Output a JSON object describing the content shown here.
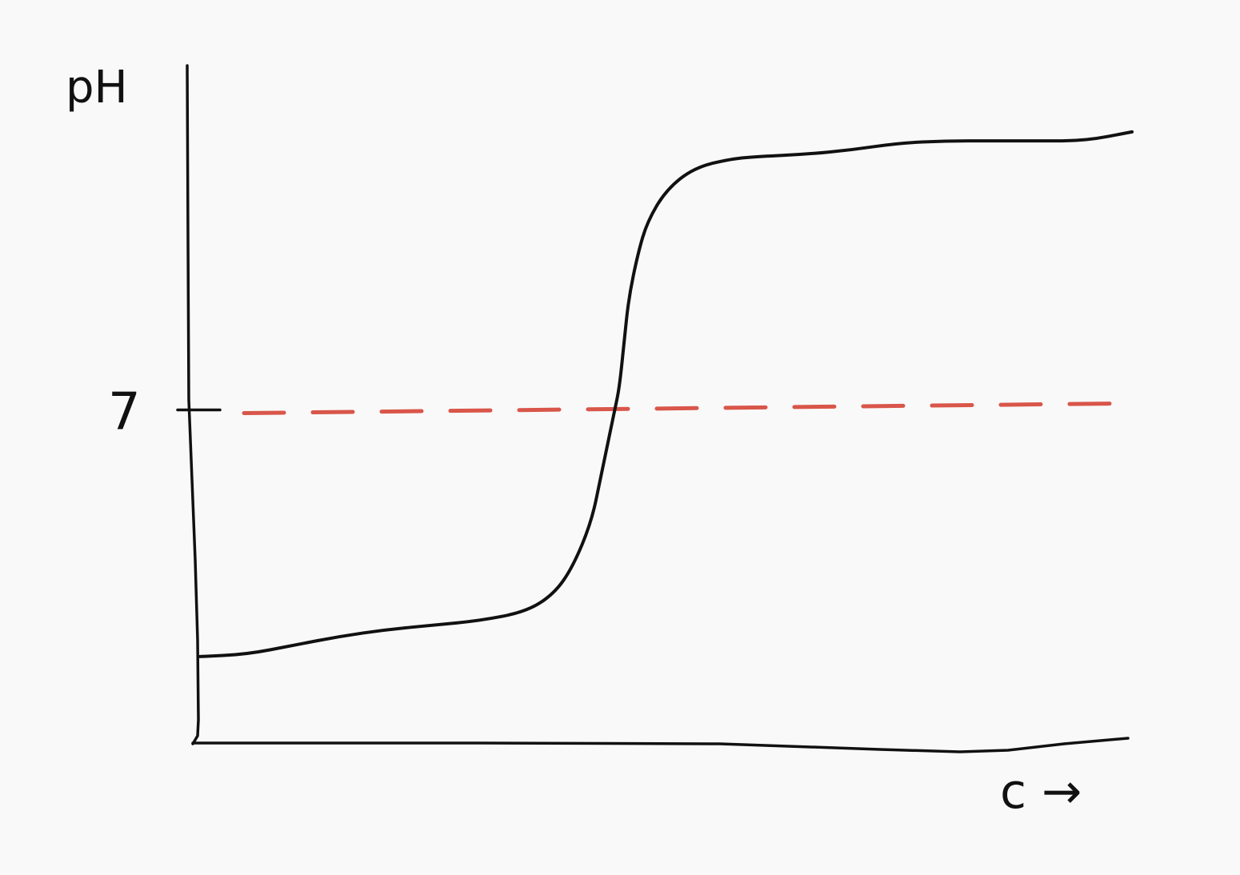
{
  "chart_data": {
    "type": "line",
    "title": "",
    "ylabel": "pH",
    "xlabel": "c →",
    "y_ticks": [
      {
        "label": "7",
        "value": 7
      }
    ],
    "reference_line": {
      "value": 7,
      "style": "dashed",
      "color": "#d9564a"
    },
    "ylim": [
      0,
      14
    ],
    "xlim": [
      0,
      1
    ],
    "series": [
      {
        "color": "#111111",
        "x": [
          0,
          0.05,
          0.1,
          0.15,
          0.2,
          0.25,
          0.3,
          0.35,
          0.38,
          0.4,
          0.42,
          0.43,
          0.44,
          0.445,
          0.45,
          0.455,
          0.46,
          0.47,
          0.48,
          0.5,
          0.53,
          0.57,
          0.6,
          0.65,
          0.7,
          0.75,
          0.8,
          0.85,
          0.9,
          0.95,
          1.0
        ],
        "y": [
          1.5,
          1.55,
          1.75,
          1.95,
          2.1,
          2.2,
          2.3,
          2.5,
          2.9,
          3.5,
          4.5,
          5.5,
          6.5,
          7.0,
          7.5,
          8.5,
          9.5,
          10.5,
          11.2,
          11.9,
          12.4,
          12.6,
          12.65,
          12.7,
          12.8,
          12.95,
          13.0,
          13.0,
          13.0,
          13.0,
          13.2
        ]
      }
    ]
  }
}
